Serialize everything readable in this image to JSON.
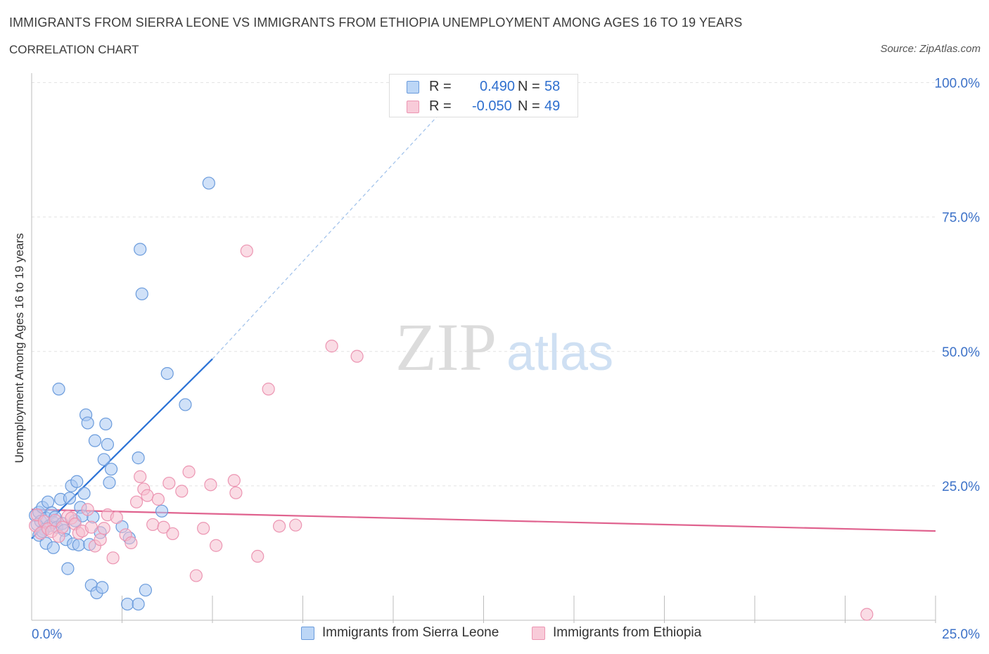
{
  "header": {
    "title": "IMMIGRANTS FROM SIERRA LEONE VS IMMIGRANTS FROM ETHIOPIA UNEMPLOYMENT AMONG AGES 16 TO 19 YEARS",
    "subtitle": "CORRELATION CHART",
    "source": "Source: ZipAtlas.com"
  },
  "watermark": {
    "zip": "ZIP",
    "atlas": "atlas"
  },
  "legend": {
    "r_label": "R =",
    "n_label": "N =",
    "sierra_leone": {
      "r": "0.490",
      "n": "58"
    },
    "ethiopia": {
      "r": "-0.050",
      "n": "49"
    }
  },
  "colors": {
    "sierra_leone_fill": "#a9c9f2",
    "sierra_leone_stroke": "#6a9bdc",
    "sierra_leone_line": "#2b72d6",
    "ethiopia_fill": "#f6bfd0",
    "ethiopia_stroke": "#ec95b2",
    "ethiopia_line": "#e0638f",
    "axis_label": "#3d72c8",
    "grid": "#e3e3e3"
  },
  "chart_data": {
    "type": "scatter",
    "title": "IMMIGRANTS FROM SIERRA LEONE VS IMMIGRANTS FROM ETHIOPIA UNEMPLOYMENT AMONG AGES 16 TO 19 YEARS",
    "xlabel": "",
    "ylabel": "Unemployment Among Ages 16 to 19 years",
    "xlim": [
      0,
      25
    ],
    "ylim": [
      0,
      100
    ],
    "x_tick_labels": [
      "0.0%",
      "25.0%"
    ],
    "y_ticks": [
      {
        "value": 25,
        "label": "25.0%"
      },
      {
        "value": 50,
        "label": "50.0%"
      },
      {
        "value": 75,
        "label": "75.0%"
      },
      {
        "value": 100,
        "label": "100.0%"
      }
    ],
    "grid": true,
    "series": [
      {
        "name": "Immigrants from Sierra Leone",
        "r": 0.49,
        "n": 58,
        "trend": {
          "x0": 0.0,
          "y0": 15.2,
          "x1": 5.0,
          "y1": 48.6,
          "dash_x1": 11.2,
          "dash_y1": 93.6
        },
        "points": [
          [
            0.1,
            19.5
          ],
          [
            0.15,
            17.8
          ],
          [
            0.2,
            20.1
          ],
          [
            0.25,
            18.4
          ],
          [
            0.3,
            21.0
          ],
          [
            0.35,
            16.9
          ],
          [
            0.4,
            19.0
          ],
          [
            0.45,
            22.0
          ],
          [
            0.5,
            17.6
          ],
          [
            0.55,
            20.0
          ],
          [
            0.6,
            18.2
          ],
          [
            0.65,
            19.2
          ],
          [
            0.7,
            17.3
          ],
          [
            0.75,
            43.0
          ],
          [
            0.8,
            22.5
          ],
          [
            0.85,
            18.0
          ],
          [
            0.9,
            16.7
          ],
          [
            0.95,
            15.0
          ],
          [
            1.0,
            9.6
          ],
          [
            1.05,
            22.7
          ],
          [
            1.1,
            25.0
          ],
          [
            1.15,
            14.2
          ],
          [
            1.2,
            18.5
          ],
          [
            1.25,
            25.8
          ],
          [
            1.3,
            14.0
          ],
          [
            1.35,
            21.0
          ],
          [
            1.4,
            19.4
          ],
          [
            1.45,
            23.6
          ],
          [
            1.5,
            38.2
          ],
          [
            1.55,
            36.7
          ],
          [
            1.6,
            14.1
          ],
          [
            1.65,
            6.5
          ],
          [
            1.7,
            19.2
          ],
          [
            1.75,
            33.4
          ],
          [
            1.8,
            5.1
          ],
          [
            1.9,
            16.3
          ],
          [
            1.95,
            6.1
          ],
          [
            2.0,
            29.9
          ],
          [
            2.05,
            36.5
          ],
          [
            2.1,
            32.7
          ],
          [
            2.15,
            25.6
          ],
          [
            2.2,
            28.1
          ],
          [
            2.5,
            17.4
          ],
          [
            2.65,
            3.0
          ],
          [
            2.7,
            15.3
          ],
          [
            2.95,
            30.2
          ],
          [
            2.95,
            3.0
          ],
          [
            3.0,
            69.0
          ],
          [
            3.05,
            60.7
          ],
          [
            3.15,
            5.6
          ],
          [
            3.6,
            20.3
          ],
          [
            3.75,
            45.9
          ],
          [
            4.25,
            40.1
          ],
          [
            4.9,
            81.3
          ],
          [
            0.2,
            15.8
          ],
          [
            0.4,
            14.3
          ],
          [
            0.6,
            13.5
          ],
          [
            0.3,
            16.5
          ]
        ]
      },
      {
        "name": "Immigrants from Ethiopia",
        "r": -0.05,
        "n": 49,
        "trend": {
          "x0": 0.0,
          "y0": 20.6,
          "x1": 25.0,
          "y1": 16.6
        },
        "points": [
          [
            0.1,
            17.6
          ],
          [
            0.15,
            19.6
          ],
          [
            0.25,
            16.2
          ],
          [
            0.35,
            18.4
          ],
          [
            0.45,
            17.0
          ],
          [
            0.55,
            16.5
          ],
          [
            0.65,
            18.6
          ],
          [
            0.75,
            15.6
          ],
          [
            0.85,
            17.3
          ],
          [
            1.0,
            19.3
          ],
          [
            1.1,
            19.0
          ],
          [
            1.2,
            17.9
          ],
          [
            1.3,
            16.2
          ],
          [
            1.4,
            16.6
          ],
          [
            1.55,
            20.6
          ],
          [
            1.65,
            17.3
          ],
          [
            1.75,
            13.8
          ],
          [
            1.9,
            15.0
          ],
          [
            2.0,
            17.1
          ],
          [
            2.1,
            19.6
          ],
          [
            2.25,
            11.6
          ],
          [
            2.35,
            19.1
          ],
          [
            2.6,
            15.9
          ],
          [
            2.75,
            14.4
          ],
          [
            2.9,
            22.0
          ],
          [
            3.0,
            26.7
          ],
          [
            3.1,
            24.4
          ],
          [
            3.2,
            23.2
          ],
          [
            3.35,
            17.8
          ],
          [
            3.5,
            22.5
          ],
          [
            3.65,
            17.3
          ],
          [
            3.8,
            25.5
          ],
          [
            3.9,
            16.1
          ],
          [
            4.15,
            24.0
          ],
          [
            4.35,
            27.6
          ],
          [
            4.55,
            8.3
          ],
          [
            4.75,
            17.1
          ],
          [
            4.95,
            25.2
          ],
          [
            5.1,
            13.9
          ],
          [
            5.6,
            26.0
          ],
          [
            5.65,
            23.7
          ],
          [
            5.95,
            68.7
          ],
          [
            6.25,
            11.9
          ],
          [
            6.55,
            43.0
          ],
          [
            6.85,
            17.5
          ],
          [
            7.3,
            17.7
          ],
          [
            8.3,
            51.0
          ],
          [
            9.0,
            49.1
          ],
          [
            23.1,
            1.1
          ]
        ]
      }
    ]
  }
}
